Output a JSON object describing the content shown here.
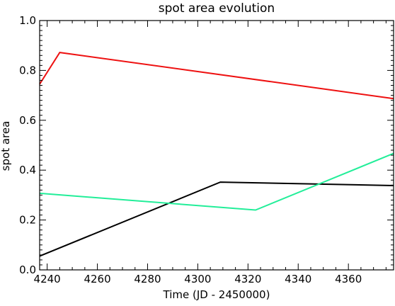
{
  "chart_data": {
    "type": "line",
    "title": "spot area evolution",
    "xlabel": "Time (JD - 2450000)",
    "ylabel": "spot area",
    "xlim": [
      4237,
      4378
    ],
    "ylim": [
      0.0,
      1.0
    ],
    "xticks": [
      4240,
      4260,
      4280,
      4300,
      4320,
      4340,
      4360
    ],
    "yticks": [
      0.0,
      0.2,
      0.4,
      0.6,
      0.8,
      1.0
    ],
    "ytick_labels": [
      "0.0",
      "0.2",
      "0.4",
      "0.6",
      "0.8",
      "1.0"
    ],
    "grid": false,
    "legend": "none",
    "series": [
      {
        "color": "#ee1111",
        "x": [
          4237,
          4245,
          4378
        ],
        "y": [
          0.745,
          0.872,
          0.687
        ]
      },
      {
        "color": "#000000",
        "x": [
          4237,
          4309,
          4378
        ],
        "y": [
          0.055,
          0.352,
          0.338
        ]
      },
      {
        "color": "#22ee99",
        "x": [
          4237,
          4323,
          4378
        ],
        "y": [
          0.307,
          0.24,
          0.467
        ]
      }
    ]
  }
}
